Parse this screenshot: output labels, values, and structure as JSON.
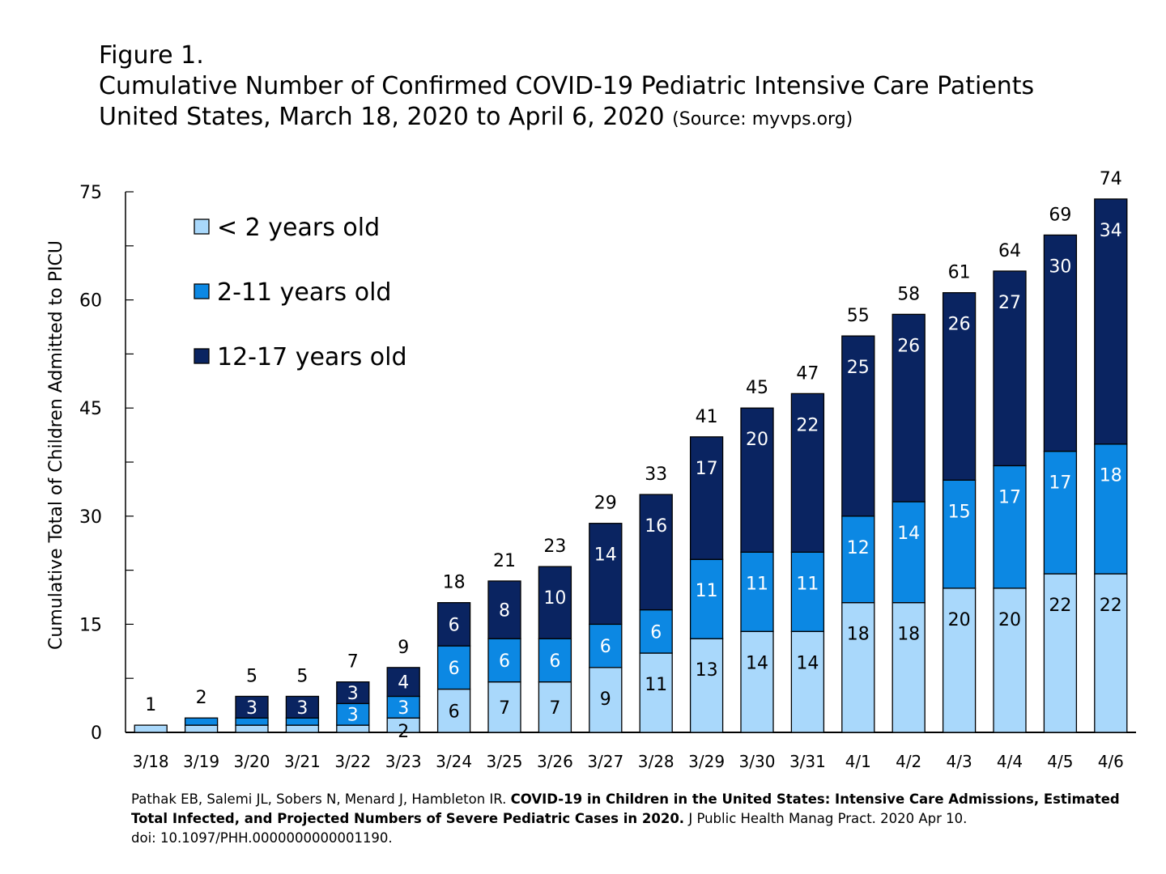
{
  "title": {
    "figure": "Figure 1.",
    "line1": "Cumulative Number of Confirmed COVID-19 Pediatric Intensive Care Patients",
    "line2": "United States, March 18, 2020 to April 6, 2020",
    "source": "(Source: myvps.org)"
  },
  "citation": {
    "authors": "Pathak EB, Salemi JL, Sobers N, Menard J, Hambleton IR.",
    "article_title": "COVID-19 in Children in the United States: Intensive Care Admissions, Estimated Total Infected, and Projected Numbers of Severe Pediatric Cases in 2020.",
    "journal": "J Public Health Manag Pract. 2020 Apr 10.",
    "doi": "doi: 10.1097/PHH.0000000000001190."
  },
  "chart_data": {
    "type": "bar",
    "stacked": true,
    "ylabel": "Cumulative Total of Children Admitted to PICU",
    "xlabel": "",
    "ylim": [
      0,
      75
    ],
    "yticks": [
      0,
      15,
      30,
      45,
      60,
      75
    ],
    "legend_position": "top-left",
    "categories": [
      "3/18",
      "3/19",
      "3/20",
      "3/21",
      "3/22",
      "3/23",
      "3/24",
      "3/25",
      "3/26",
      "3/27",
      "3/28",
      "3/29",
      "3/30",
      "3/31",
      "4/1",
      "4/2",
      "4/3",
      "4/4",
      "4/5",
      "4/6"
    ],
    "series": [
      {
        "name": "< 2 years  old",
        "color": "#a9d8fb",
        "label_color": "#000000",
        "values": [
          1,
          1,
          1,
          1,
          1,
          2,
          6,
          7,
          7,
          9,
          11,
          13,
          14,
          14,
          18,
          18,
          20,
          20,
          22,
          22
        ],
        "labels": [
          "",
          "",
          "",
          "",
          "",
          "2",
          "6",
          "7",
          "7",
          "9",
          "11",
          "13",
          "14",
          "14",
          "18",
          "18",
          "20",
          "20",
          "22",
          "22"
        ]
      },
      {
        "name": "2-11 years old",
        "color": "#0c88e3",
        "label_color": "#ffffff",
        "values": [
          0,
          1,
          1,
          1,
          3,
          3,
          6,
          6,
          6,
          6,
          6,
          11,
          11,
          11,
          12,
          14,
          15,
          17,
          17,
          18
        ],
        "labels": [
          "",
          "",
          "",
          "",
          "3",
          "3",
          "6",
          "6",
          "6",
          "6",
          "6",
          "11",
          "11",
          "11",
          "12",
          "14",
          "15",
          "17",
          "17",
          "18"
        ]
      },
      {
        "name": "12-17 years old",
        "color": "#0a2461",
        "label_color": "#ffffff",
        "values": [
          0,
          0,
          3,
          3,
          3,
          4,
          6,
          8,
          10,
          14,
          16,
          17,
          20,
          22,
          25,
          26,
          26,
          27,
          30,
          34
        ],
        "labels": [
          "",
          "",
          "3",
          "3",
          "3",
          "4",
          "6",
          "8",
          "10",
          "14",
          "16",
          "17",
          "20",
          "22",
          "25",
          "26",
          "26",
          "27",
          "30",
          "34"
        ]
      }
    ],
    "totals": [
      1,
      2,
      5,
      5,
      7,
      9,
      18,
      21,
      23,
      29,
      33,
      41,
      45,
      47,
      55,
      58,
      61,
      64,
      69,
      74
    ]
  }
}
